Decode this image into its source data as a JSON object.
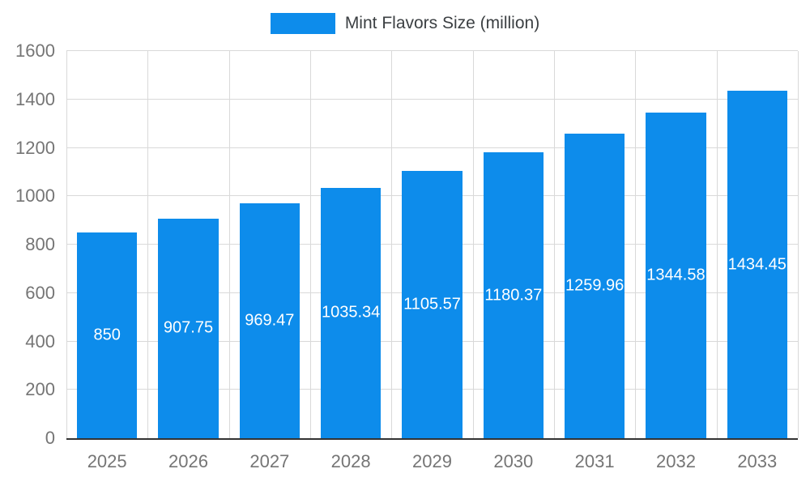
{
  "legend": {
    "label": "Mint Flavors Size (million)",
    "swatch_color": "#0d8ceb"
  },
  "chart_data": {
    "type": "bar",
    "title": "Mint Flavors Size (million)",
    "categories": [
      "2025",
      "2026",
      "2027",
      "2028",
      "2029",
      "2030",
      "2031",
      "2032",
      "2033"
    ],
    "series": [
      {
        "name": "Mint Flavors Size (million)",
        "values": [
          850,
          907.75,
          969.47,
          1035.34,
          1105.57,
          1180.37,
          1259.96,
          1344.58,
          1434.45
        ],
        "labels": [
          "850",
          "907.75",
          "969.47",
          "1035.34",
          "1105.57",
          "1180.37",
          "1259.96",
          "1344.58",
          "1434.45"
        ]
      }
    ],
    "xlabel": "",
    "ylabel": "",
    "ylim": [
      0,
      1600
    ],
    "yticks": [
      0,
      200,
      400,
      600,
      800,
      1000,
      1200,
      1400,
      1600
    ],
    "bar_color": "#0d8ceb",
    "grid": true,
    "grid_color": "#d9d9d9",
    "axis_text_color": "#757575",
    "value_label_color": "#ffffff",
    "legend_position": "top"
  }
}
